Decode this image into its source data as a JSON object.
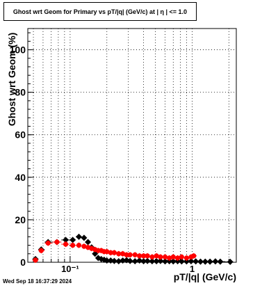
{
  "title": "Ghost wrt Geom for Primary vs pT/|q| (GeV/c) at |  η  | <= 1.0",
  "datestamp": "Wed Sep 18 16:37:29 2024",
  "chart_data": {
    "type": "scatter",
    "title": "Ghost wrt Geom for Primary vs pT/|q| (GeV/c) at |  η  | <= 1.0",
    "xlabel": "pT/|q| (GeV/c)",
    "ylabel": "Ghost wrt Geom (%)",
    "x_scale": "log",
    "xlim": [
      0.045,
      2.3
    ],
    "ylim": [
      0,
      110
    ],
    "grid": true,
    "x_ticks": [
      {
        "value": 0.1,
        "label": "10⁻¹"
      },
      {
        "value": 1,
        "label": "1"
      }
    ],
    "y_ticks": [
      0,
      20,
      40,
      60,
      80,
      100
    ],
    "series": [
      {
        "color": "#000000",
        "marker": "diamond",
        "points": [
          [
            0.052,
            1.5
          ],
          [
            0.058,
            6
          ],
          [
            0.066,
            9.5
          ],
          [
            0.078,
            9.5
          ],
          [
            0.092,
            10.5
          ],
          [
            0.105,
            10.5
          ],
          [
            0.118,
            12
          ],
          [
            0.13,
            11.5
          ],
          [
            0.14,
            9.5
          ],
          [
            0.15,
            7
          ],
          [
            0.16,
            4
          ],
          [
            0.17,
            2
          ],
          [
            0.18,
            1.5
          ],
          [
            0.19,
            1.2
          ],
          [
            0.2,
            0.8
          ],
          [
            0.215,
            0.8
          ],
          [
            0.23,
            0.6
          ],
          [
            0.25,
            0.5
          ],
          [
            0.27,
            0.8
          ],
          [
            0.29,
            1.0
          ],
          [
            0.31,
            0.6
          ],
          [
            0.34,
            0.5
          ],
          [
            0.37,
            0.8
          ],
          [
            0.4,
            0.5
          ],
          [
            0.43,
            0.6
          ],
          [
            0.47,
            0.5
          ],
          [
            0.51,
            0.5
          ],
          [
            0.55,
            0.6
          ],
          [
            0.6,
            0.4
          ],
          [
            0.65,
            0.5
          ],
          [
            0.7,
            0.4
          ],
          [
            0.76,
            0.5
          ],
          [
            0.82,
            0.4
          ],
          [
            0.9,
            0.4
          ],
          [
            0.98,
            0.5
          ],
          [
            1.07,
            0.4
          ],
          [
            1.17,
            0.3
          ],
          [
            1.28,
            0.3
          ],
          [
            1.4,
            0.3
          ],
          [
            1.55,
            0.4
          ],
          [
            1.7,
            0.3
          ],
          [
            2.05,
            0.2
          ]
        ]
      },
      {
        "color": "#ff0000",
        "marker": "circle",
        "points": [
          [
            0.052,
            1.0
          ],
          [
            0.058,
            5.5
          ],
          [
            0.066,
            9.0
          ],
          [
            0.078,
            9.5
          ],
          [
            0.092,
            8.5
          ],
          [
            0.105,
            8.0
          ],
          [
            0.118,
            8.0
          ],
          [
            0.13,
            7.5
          ],
          [
            0.14,
            7.0
          ],
          [
            0.15,
            6.5
          ],
          [
            0.16,
            6.0
          ],
          [
            0.17,
            5.5
          ],
          [
            0.18,
            5.5
          ],
          [
            0.19,
            5.0
          ],
          [
            0.2,
            5.0
          ],
          [
            0.215,
            4.5
          ],
          [
            0.23,
            4.5
          ],
          [
            0.25,
            4.0
          ],
          [
            0.27,
            4.0
          ],
          [
            0.29,
            3.5
          ],
          [
            0.31,
            3.5
          ],
          [
            0.34,
            3.5
          ],
          [
            0.37,
            3.0
          ],
          [
            0.4,
            3.0
          ],
          [
            0.43,
            3.0
          ],
          [
            0.47,
            2.5
          ],
          [
            0.51,
            3.0
          ],
          [
            0.55,
            2.5
          ],
          [
            0.6,
            2.5
          ],
          [
            0.65,
            2.0
          ],
          [
            0.7,
            2.5
          ],
          [
            0.76,
            2.0
          ],
          [
            0.82,
            2.5
          ],
          [
            0.9,
            2.0
          ],
          [
            0.98,
            2.5
          ],
          [
            1.03,
            3.0
          ]
        ]
      }
    ]
  }
}
